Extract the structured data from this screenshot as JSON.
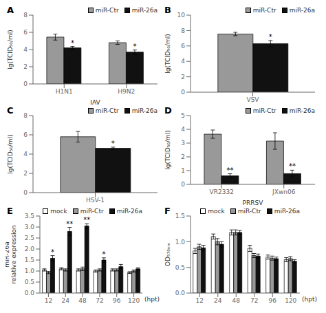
{
  "chart_data": [
    {
      "type": "bar",
      "title": "A",
      "x_label": "IAV",
      "y_label": "lg(TCID₅₀/ml)",
      "categories": [
        "H1N1",
        "H9N2"
      ],
      "series": [
        {
          "name": "miR-Ctr",
          "color": "#999999",
          "values": [
            5.45,
            4.8
          ],
          "errors": [
            0.35,
            0.2
          ]
        },
        {
          "name": "miR-26a",
          "color": "#111111",
          "values": [
            4.2,
            3.7
          ],
          "errors": [
            0.15,
            0.25
          ]
        }
      ],
      "ylim": [
        0,
        8
      ],
      "yticks": [
        0,
        2,
        4,
        6,
        8
      ],
      "annotations": [
        {
          "text": "*",
          "category": "H1N1",
          "series": "miR-26a"
        },
        {
          "text": "*",
          "category": "H9N2",
          "series": "miR-26a"
        }
      ],
      "legend": "upper right",
      "grid": false
    },
    {
      "type": "bar",
      "title": "B",
      "y_label": "lg(TCID₅₀/ml)",
      "categories": [
        "VSV"
      ],
      "series": [
        {
          "name": "miR-Ctr",
          "color": "#999999",
          "values": [
            7.55
          ],
          "errors": [
            0.22
          ]
        },
        {
          "name": "miR-26a",
          "color": "#111111",
          "values": [
            6.3
          ],
          "errors": [
            0.4
          ]
        }
      ],
      "ylim": [
        0,
        10
      ],
      "yticks": [
        0,
        2,
        4,
        6,
        8,
        10
      ],
      "annotations": [
        {
          "text": "*",
          "category": "VSV",
          "series": "miR-26a"
        }
      ],
      "legend": "upper right",
      "grid": false
    },
    {
      "type": "bar",
      "title": "C",
      "y_label": "lg(TCID₅₀/ml)",
      "categories": [
        "HSV-1"
      ],
      "series": [
        {
          "name": "miR-Ctr",
          "color": "#999999",
          "values": [
            5.8
          ],
          "errors": [
            0.55
          ]
        },
        {
          "name": "miR-26a",
          "color": "#111111",
          "values": [
            4.6
          ],
          "errors": [
            0.12
          ]
        }
      ],
      "ylim": [
        0,
        8
      ],
      "yticks": [
        0,
        2,
        4,
        6,
        8
      ],
      "annotations": [
        {
          "text": "*",
          "category": "HSV-1",
          "series": "miR-26a"
        }
      ],
      "legend": "upper right",
      "grid": false
    },
    {
      "type": "bar",
      "title": "D",
      "x_label": "PRRSV",
      "y_label": "lg(TCID₅₀/ml)",
      "categories": [
        "VR2332",
        "JXwn06"
      ],
      "series": [
        {
          "name": "miR-Ctr",
          "color": "#999999",
          "values": [
            3.65,
            3.15
          ],
          "errors": [
            0.3,
            0.6
          ]
        },
        {
          "name": "miR-26a",
          "color": "#111111",
          "values": [
            0.62,
            0.78
          ],
          "errors": [
            0.15,
            0.25
          ]
        }
      ],
      "ylim": [
        0,
        5
      ],
      "yticks": [
        0,
        1,
        2,
        3,
        4,
        5
      ],
      "annotations": [
        {
          "text": "**",
          "category": "VR2332",
          "series": "miR-26a"
        },
        {
          "text": "**",
          "category": "JXwn06",
          "series": "miR-26a"
        }
      ],
      "legend": "upper right",
      "grid": false
    },
    {
      "type": "bar",
      "title": "E",
      "x_label": "(hpt)",
      "y_label": "miR-26a\nrelative expression",
      "categories": [
        "12",
        "24",
        "48",
        "72",
        "96",
        "120"
      ],
      "series": [
        {
          "name": "mock",
          "color": "#ffffff",
          "values": [
            1.05,
            1.1,
            1.05,
            1.0,
            1.05,
            0.93
          ],
          "errors": [
            0.05,
            0.05,
            0.05,
            0.05,
            0.05,
            0.04
          ]
        },
        {
          "name": "miR-Ctr",
          "color": "#999999",
          "values": [
            0.93,
            1.05,
            1.1,
            1.05,
            1.05,
            1.0
          ],
          "errors": [
            0.05,
            0.05,
            0.08,
            0.05,
            0.05,
            0.05
          ]
        },
        {
          "name": "miR-26a",
          "color": "#111111",
          "values": [
            1.58,
            2.8,
            3.05,
            1.5,
            1.2,
            1.1
          ],
          "errors": [
            0.12,
            0.18,
            0.1,
            0.1,
            0.1,
            0.05
          ]
        }
      ],
      "ylim": [
        0.0,
        3.5
      ],
      "yticks": [
        {
          "value": 0,
          "label": "0.0"
        },
        0.5,
        {
          "value": 1,
          "label": "1.0"
        },
        1.5,
        {
          "value": 2,
          "label": "2.0"
        },
        2.5,
        {
          "value": 3,
          "label": "3.0"
        },
        3.5
      ],
      "annotations": [
        {
          "text": "*",
          "category": "12",
          "series": "miR-26a"
        },
        {
          "text": "**",
          "category": "24",
          "series": "miR-26a"
        },
        {
          "text": "**",
          "category": "48",
          "series": "miR-26a"
        },
        {
          "text": "*",
          "category": "72",
          "series": "miR-26a"
        }
      ],
      "legend": "upper right",
      "grid": false
    },
    {
      "type": "bar",
      "title": "F",
      "x_label": "(hpt)",
      "y_label": "OD₅₇₀ₙₘ",
      "categories": [
        "12",
        "24",
        "48",
        "72",
        "96",
        "120"
      ],
      "series": [
        {
          "name": "mock",
          "color": "#ffffff",
          "values": [
            0.82,
            1.1,
            1.18,
            0.87,
            0.7,
            0.65
          ],
          "errors": [
            0.05,
            0.05,
            0.05,
            0.06,
            0.04,
            0.04
          ]
        },
        {
          "name": "miR-Ctr",
          "color": "#999999",
          "values": [
            0.9,
            1.0,
            1.18,
            0.73,
            0.68,
            0.67
          ],
          "errors": [
            0.05,
            0.06,
            0.05,
            0.04,
            0.04,
            0.04
          ]
        },
        {
          "name": "miR-26a",
          "color": "#111111",
          "values": [
            0.88,
            0.95,
            1.18,
            0.72,
            0.67,
            0.62
          ],
          "errors": [
            0.05,
            0.05,
            0.04,
            0.04,
            0.03,
            0.03
          ]
        }
      ],
      "ylim": [
        0.0,
        1.5
      ],
      "yticks": [
        {
          "value": 0,
          "label": "0.0"
        },
        0.5,
        {
          "value": 1,
          "label": "1.0"
        },
        1.5
      ],
      "legend": "upper right",
      "grid": false
    }
  ]
}
